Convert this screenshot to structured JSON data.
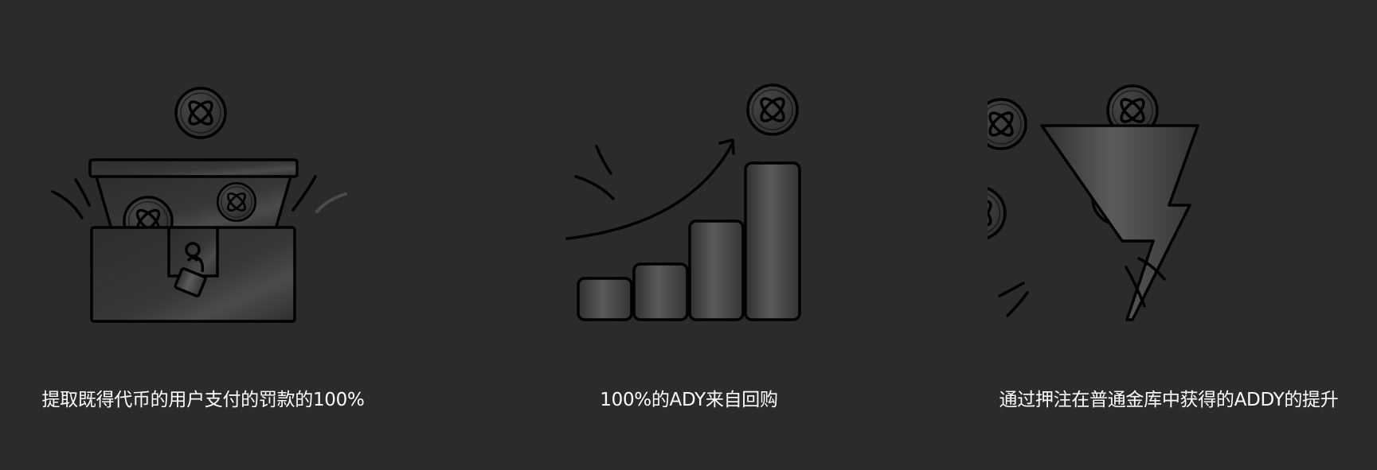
{
  "features": [
    {
      "illustration": "treasure-chest-icon",
      "caption": "提取既得代币的用户支付的罚款的100%"
    },
    {
      "illustration": "growth-chart-icon",
      "caption": "100%的ADY来自回购"
    },
    {
      "illustration": "lightning-bolt-icon",
      "caption": "通过押注在普通金库中获得的ADDY的提升"
    }
  ],
  "colors": {
    "background": "#2a2b2b",
    "text": "#ffffff",
    "outline": "#000000",
    "fill": "#303131"
  }
}
